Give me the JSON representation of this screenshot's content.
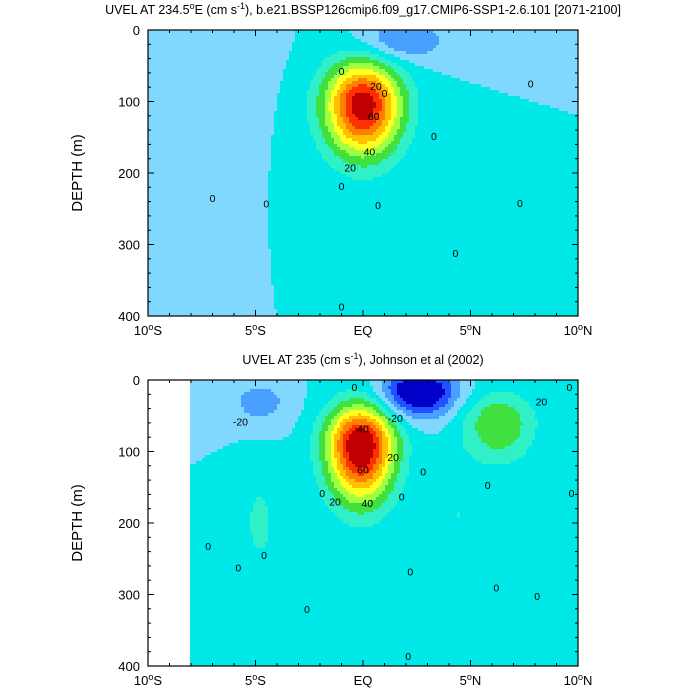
{
  "chart_data": [
    {
      "type": "heatmap",
      "subtype": "filled-contour",
      "title_parts": [
        "UVEL AT 234.5",
        "o",
        "E (cm s",
        "-1",
        "), b.e21.BSSP126cmip6.f09_g17.CMIP6-SSP1-2.6.101 [2071-2100]"
      ],
      "ylabel": "DEPTH (m)",
      "xlim": [
        -10,
        10
      ],
      "ylim": [
        0,
        400
      ],
      "y_inverted": true,
      "x_ticks": [
        {
          "value": -10,
          "num": "10",
          "deg": "o",
          "hem": "S"
        },
        {
          "value": -5,
          "num": "5",
          "deg": "o",
          "hem": "S"
        },
        {
          "value": 0,
          "num": "EQ",
          "deg": "",
          "hem": ""
        },
        {
          "value": 5,
          "num": "5",
          "deg": "o",
          "hem": "N"
        },
        {
          "value": 10,
          "num": "10",
          "deg": "o",
          "hem": "N"
        }
      ],
      "y_ticks": [
        0,
        100,
        200,
        300,
        400
      ],
      "contour_interval": 10,
      "colormap": [
        "#0000c8",
        "#2050ff",
        "#4aa0ff",
        "#80d8ff",
        "#00e8e8",
        "#30f0c8",
        "#40e040",
        "#a0ff40",
        "#ffff20",
        "#ffc000",
        "#ff8000",
        "#ff3000",
        "#c00000"
      ],
      "cores": [
        {
          "name": "EUC",
          "x": 0.0,
          "y": 105,
          "amp": 88,
          "sx": 1.25,
          "sy_up": 42,
          "sy_down": 50
        },
        {
          "name": "SEC",
          "x": 1.8,
          "y": 15,
          "amp": -22,
          "sx": 1.4,
          "sy_up": 20,
          "sy_down": 20
        },
        {
          "name": "west-neg",
          "x": -8.5,
          "y": 40,
          "amp": -7,
          "sx": 2.2,
          "sy_up": 30,
          "sy_down": 60
        }
      ],
      "background": 0,
      "contour_labels": [
        {
          "text": "20",
          "x": 0.6,
          "y": 78
        },
        {
          "text": "60",
          "x": 0.5,
          "y": 120
        },
        {
          "text": "40",
          "x": 0.3,
          "y": 170
        },
        {
          "text": "20",
          "x": -0.6,
          "y": 192
        },
        {
          "text": "0",
          "x": -1.0,
          "y": 57
        },
        {
          "text": "0",
          "x": 1.0,
          "y": 88
        },
        {
          "text": "0",
          "x": -1.0,
          "y": 218
        },
        {
          "text": "0",
          "x": 0.7,
          "y": 245
        },
        {
          "text": "0",
          "x": 3.3,
          "y": 148
        },
        {
          "text": "0",
          "x": -4.5,
          "y": 243
        },
        {
          "text": "0",
          "x": -7.0,
          "y": 235
        },
        {
          "text": "0",
          "x": 4.3,
          "y": 312
        },
        {
          "text": "0",
          "x": 7.3,
          "y": 242
        },
        {
          "text": "0",
          "x": 7.8,
          "y": 75
        },
        {
          "text": "0",
          "x": -1.0,
          "y": 387
        }
      ]
    },
    {
      "type": "heatmap",
      "subtype": "filled-contour",
      "title_parts": [
        "UVEL AT 235 (cm s",
        "-1",
        "), Johnson et al (2002)"
      ],
      "ylabel": "DEPTH (m)",
      "xlim": [
        -10,
        10
      ],
      "ylim": [
        0,
        400
      ],
      "y_inverted": true,
      "x_ticks": [
        {
          "value": -10,
          "num": "10",
          "deg": "o",
          "hem": "S"
        },
        {
          "value": -5,
          "num": "5",
          "deg": "o",
          "hem": "S"
        },
        {
          "value": 0,
          "num": "EQ",
          "deg": "",
          "hem": ""
        },
        {
          "value": 5,
          "num": "5",
          "deg": "o",
          "hem": "N"
        },
        {
          "value": 10,
          "num": "10",
          "deg": "o",
          "hem": "N"
        }
      ],
      "y_ticks": [
        0,
        100,
        200,
        300,
        400
      ],
      "contour_interval": 10,
      "colormap": [
        "#0000c8",
        "#2050ff",
        "#4aa0ff",
        "#80d8ff",
        "#00e8e8",
        "#30f0c8",
        "#40e040",
        "#a0ff40",
        "#ffff20",
        "#ffc000",
        "#ff8000",
        "#ff3000",
        "#c00000"
      ],
      "cores": [
        {
          "name": "EUC",
          "x": -0.1,
          "y": 90,
          "amp": 95,
          "sx": 1.1,
          "sy_up": 38,
          "sy_down": 55
        },
        {
          "name": "SEC",
          "x": 2.6,
          "y": 15,
          "amp": -50,
          "sx": 1.2,
          "sy_up": 18,
          "sy_down": 25
        },
        {
          "name": "west-neg",
          "x": -4.8,
          "y": 30,
          "amp": -15,
          "sx": 1.0,
          "sy_up": 20,
          "sy_down": 25
        },
        {
          "name": "nec",
          "x": 6.3,
          "y": 60,
          "amp": 30,
          "sx": 1.2,
          "sy_up": 30,
          "sy_down": 40
        },
        {
          "name": "s-pos",
          "x": -4.8,
          "y": 200,
          "amp": 12,
          "sx": 0.7,
          "sy_up": 60,
          "sy_down": 60
        },
        {
          "name": "n-pos",
          "x": 4.4,
          "y": 190,
          "amp": 10,
          "sx": 0.6,
          "sy_up": 50,
          "sy_down": 60
        }
      ],
      "background": 0,
      "data_extent_x": [
        -8,
        10
      ],
      "contour_labels": [
        {
          "text": "-20",
          "x": -5.7,
          "y": 58
        },
        {
          "text": "40",
          "x": 0.0,
          "y": 68
        },
        {
          "text": "-20",
          "x": 1.5,
          "y": 53
        },
        {
          "text": "60",
          "x": 0.0,
          "y": 125
        },
        {
          "text": "20",
          "x": 1.4,
          "y": 108
        },
        {
          "text": "40",
          "x": 0.2,
          "y": 172
        },
        {
          "text": "20",
          "x": -1.3,
          "y": 170
        },
        {
          "text": "0",
          "x": -0.4,
          "y": 10
        },
        {
          "text": "0",
          "x": 2.8,
          "y": 128
        },
        {
          "text": "0",
          "x": 1.8,
          "y": 163
        },
        {
          "text": "0",
          "x": -1.9,
          "y": 158
        },
        {
          "text": "0",
          "x": 5.8,
          "y": 147
        },
        {
          "text": "20",
          "x": 8.3,
          "y": 30
        },
        {
          "text": "0",
          "x": 9.6,
          "y": 10
        },
        {
          "text": "0",
          "x": 9.7,
          "y": 158
        },
        {
          "text": "0",
          "x": -7.2,
          "y": 232
        },
        {
          "text": "0",
          "x": -5.8,
          "y": 262
        },
        {
          "text": "0",
          "x": -4.6,
          "y": 245
        },
        {
          "text": "0",
          "x": 2.2,
          "y": 268
        },
        {
          "text": "0",
          "x": 6.2,
          "y": 290
        },
        {
          "text": "0",
          "x": 8.1,
          "y": 302
        },
        {
          "text": "0",
          "x": -2.6,
          "y": 320
        },
        {
          "text": "0",
          "x": 2.1,
          "y": 386
        }
      ]
    }
  ]
}
